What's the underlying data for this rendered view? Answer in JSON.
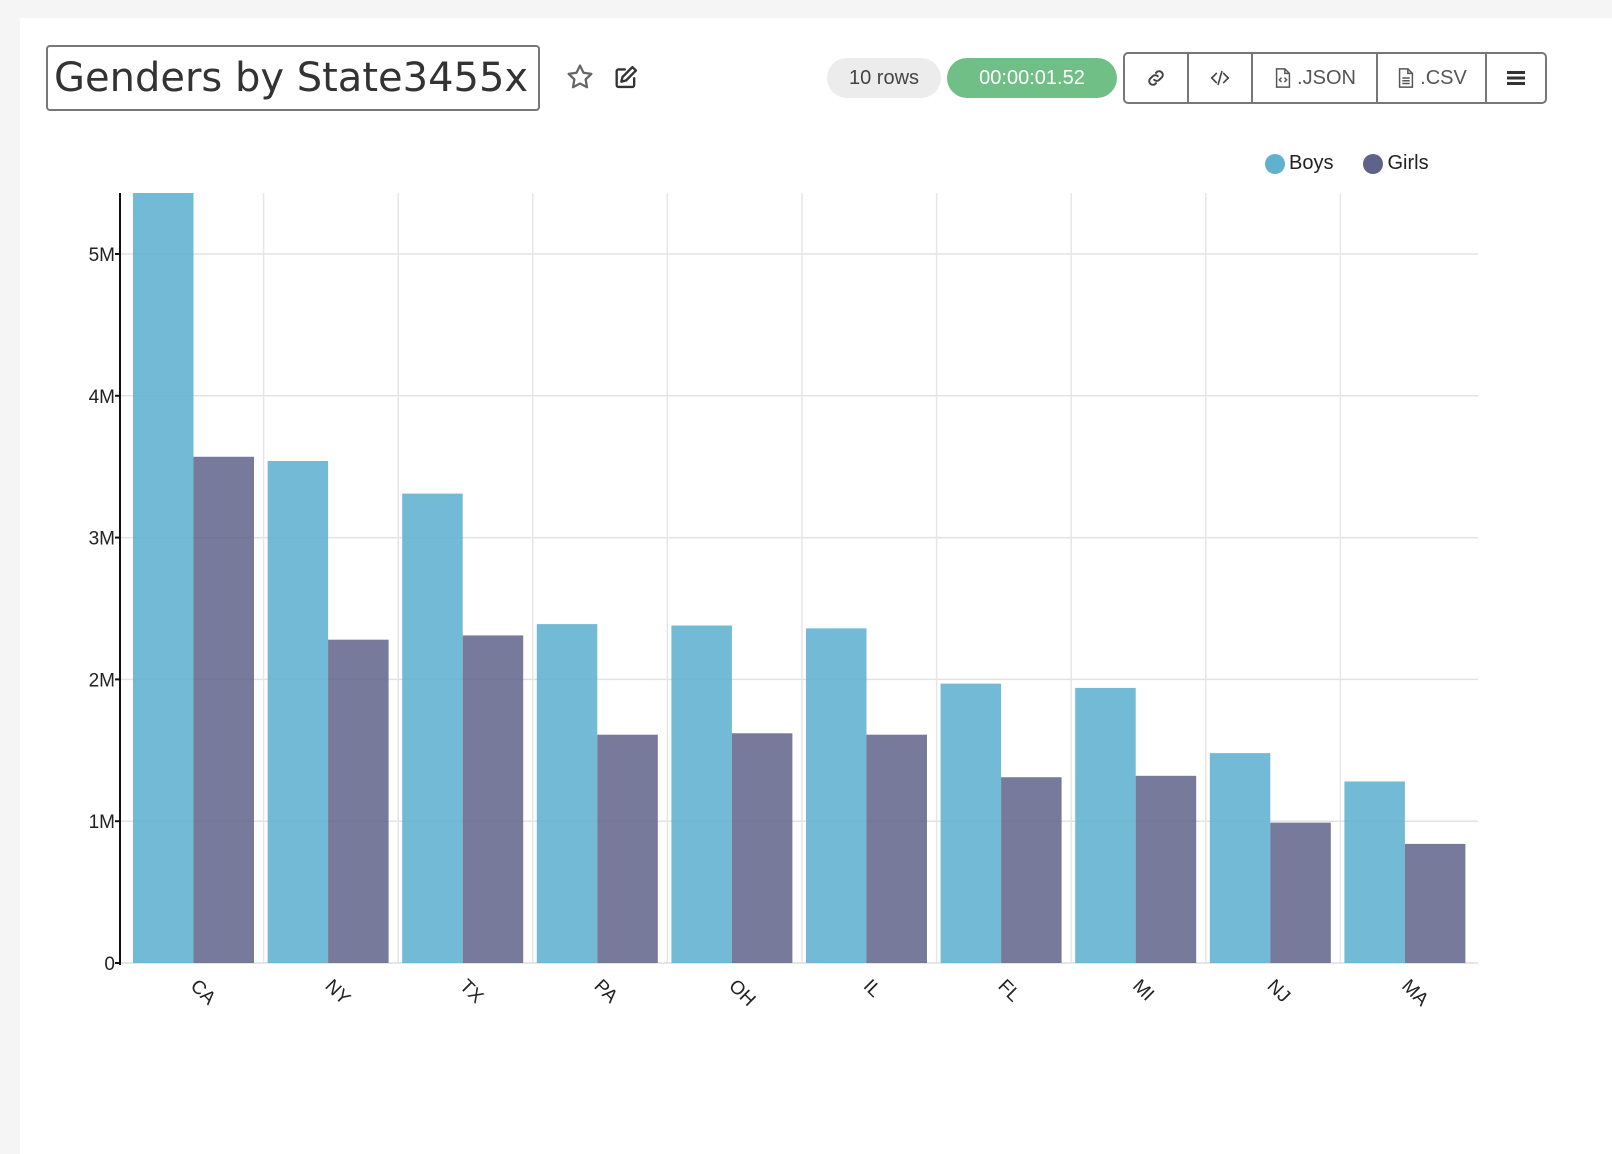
{
  "header": {
    "title_value": "Genders by State3455x",
    "rows_label": "10 rows",
    "timer_label": "00:00:01.52",
    "star_icon": "star-icon",
    "edit_icon": "edit-icon",
    "buttons": {
      "link_icon": "link-icon",
      "code_icon": "code-icon",
      "json_label": ".JSON",
      "csv_label": ".CSV",
      "menu_icon": "menu-icon"
    }
  },
  "colors": {
    "boys": "#5fb1cf",
    "girls": "#5f6389",
    "timer": "#6fbf86"
  },
  "chart_data": {
    "type": "bar",
    "title": "",
    "xlabel": "",
    "ylabel": "",
    "categories": [
      "CA",
      "NY",
      "TX",
      "PA",
      "OH",
      "IL",
      "FL",
      "MI",
      "NJ",
      "MA"
    ],
    "series": [
      {
        "name": "Boys",
        "values": [
          5430000,
          3540000,
          3310000,
          2390000,
          2380000,
          2360000,
          1970000,
          1940000,
          1480000,
          1280000
        ]
      },
      {
        "name": "Girls",
        "values": [
          3570000,
          2280000,
          2310000,
          1610000,
          1620000,
          1610000,
          1310000,
          1320000,
          990000,
          840000
        ]
      }
    ],
    "ylim": [
      0,
      5430000
    ],
    "yticks": [
      0,
      1000000,
      2000000,
      3000000,
      4000000,
      5000000
    ],
    "ytick_labels": [
      "0",
      "1M",
      "2M",
      "3M",
      "4M",
      "5M"
    ],
    "legend": "top-right",
    "grid": true
  }
}
